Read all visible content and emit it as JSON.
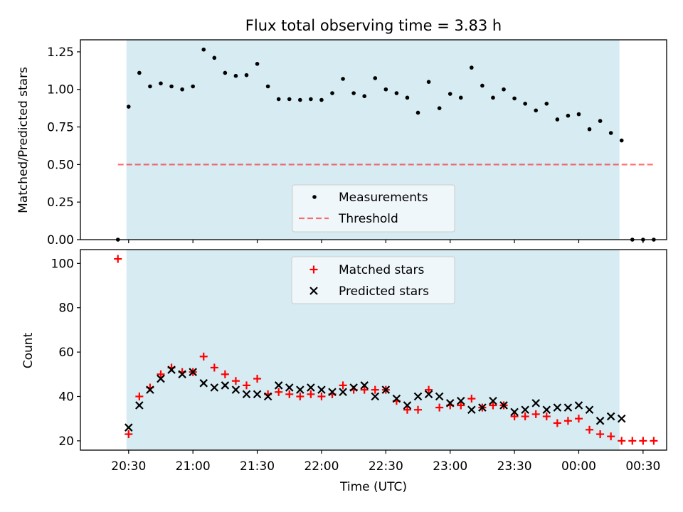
{
  "title": "Flux total observing time = 3.83 h",
  "colors": {
    "shade": "#add8e6",
    "threshold": "#ff0000",
    "measurement": "#000000",
    "matched": "#ff0000",
    "predicted": "#000000",
    "legend_bg": "#f4f9fb"
  },
  "chart_data": [
    {
      "type": "scatter",
      "panel": "top",
      "title": "Flux total observing time = 3.83 h",
      "xlabel": "",
      "ylabel": "Matched/Predicted stars",
      "ylim": [
        0,
        1.33
      ],
      "xlim_minutes_after_2000": [
        7.5,
        281
      ],
      "yticks": [
        "0.00",
        "0.25",
        "0.50",
        "0.75",
        "1.00",
        "1.25"
      ],
      "ytick_values": [
        0,
        0.25,
        0.5,
        0.75,
        1.0,
        1.25
      ],
      "shaded_span_minutes": [
        29,
        259
      ],
      "legend_position": "lower center",
      "series": [
        {
          "name": "Measurements",
          "x": [
            25,
            30,
            35,
            40,
            45,
            50,
            55,
            60,
            65,
            70,
            75,
            80,
            85,
            90,
            95,
            100,
            105,
            110,
            115,
            120,
            125,
            130,
            135,
            140,
            145,
            150,
            155,
            160,
            165,
            170,
            175,
            180,
            185,
            190,
            195,
            200,
            205,
            210,
            215,
            220,
            225,
            230,
            235,
            240,
            245,
            250,
            255,
            260,
            265,
            270,
            275
          ],
          "values": [
            0.0,
            0.885,
            1.11,
            1.02,
            1.04,
            1.02,
            1.0,
            1.02,
            1.265,
            1.21,
            1.11,
            1.09,
            1.095,
            1.17,
            1.02,
            0.935,
            0.935,
            0.93,
            0.935,
            0.93,
            0.975,
            1.07,
            0.975,
            0.955,
            1.075,
            1.0,
            0.975,
            0.945,
            0.845,
            1.05,
            0.875,
            0.97,
            0.945,
            1.145,
            1.025,
            0.945,
            1.0,
            0.94,
            0.905,
            0.86,
            0.905,
            0.8,
            0.825,
            0.835,
            0.735,
            0.79,
            0.71,
            0.66,
            0.0,
            0.0,
            0.0
          ]
        },
        {
          "name": "Threshold",
          "type": "line",
          "x": [
            25,
            275
          ],
          "values": [
            0.5,
            0.5
          ]
        }
      ]
    },
    {
      "type": "scatter",
      "panel": "bottom",
      "xlabel": "Time (UTC)",
      "ylabel": "Count",
      "ylim": [
        15.8,
        106.2
      ],
      "xlim_minutes_after_2000": [
        7.5,
        281
      ],
      "yticks": [
        "20",
        "40",
        "60",
        "80",
        "100"
      ],
      "ytick_values": [
        20,
        40,
        60,
        80,
        100
      ],
      "xticks": [
        "20:30",
        "21:00",
        "21:30",
        "22:00",
        "22:30",
        "23:00",
        "23:30",
        "00:00",
        "00:30"
      ],
      "xtick_values": [
        30,
        60,
        90,
        120,
        150,
        180,
        210,
        240,
        270
      ],
      "shaded_span_minutes": [
        29,
        259
      ],
      "legend_position": "upper center",
      "series": [
        {
          "name": "Matched stars",
          "x": [
            25,
            30,
            35,
            40,
            45,
            50,
            55,
            60,
            65,
            70,
            75,
            80,
            85,
            90,
            95,
            100,
            105,
            110,
            115,
            120,
            125,
            130,
            135,
            140,
            145,
            150,
            155,
            160,
            165,
            170,
            175,
            180,
            185,
            190,
            195,
            200,
            205,
            210,
            215,
            220,
            225,
            230,
            235,
            240,
            245,
            250,
            255,
            260,
            265,
            270,
            275
          ],
          "values": [
            102,
            23,
            40,
            44,
            50,
            53,
            51,
            51,
            58,
            53,
            50,
            47,
            45,
            48,
            41,
            42,
            41,
            40,
            41,
            40,
            41,
            45,
            43,
            43,
            43,
            43,
            38,
            34,
            34,
            43,
            35,
            36,
            36,
            39,
            35,
            36,
            36,
            31,
            31,
            32,
            31,
            28,
            29,
            30,
            25,
            23,
            22,
            20,
            20,
            20,
            20
          ]
        },
        {
          "name": "Predicted stars",
          "x": [
            30,
            35,
            40,
            45,
            50,
            55,
            60,
            65,
            70,
            75,
            80,
            85,
            90,
            95,
            100,
            105,
            110,
            115,
            120,
            125,
            130,
            135,
            140,
            145,
            150,
            155,
            160,
            165,
            170,
            175,
            180,
            185,
            190,
            195,
            200,
            205,
            210,
            215,
            220,
            225,
            230,
            235,
            240,
            245,
            250,
            255,
            260
          ],
          "values": [
            26,
            36,
            43,
            48,
            52,
            50,
            51,
            46,
            44,
            45,
            43,
            41,
            41,
            40,
            45,
            44,
            43,
            44,
            43,
            42,
            42,
            44,
            45,
            40,
            43,
            39,
            36,
            40,
            41,
            40,
            37,
            38,
            34,
            35,
            38,
            36,
            33,
            34,
            37,
            34,
            35,
            35,
            36,
            34,
            29,
            31,
            30
          ]
        }
      ]
    }
  ]
}
